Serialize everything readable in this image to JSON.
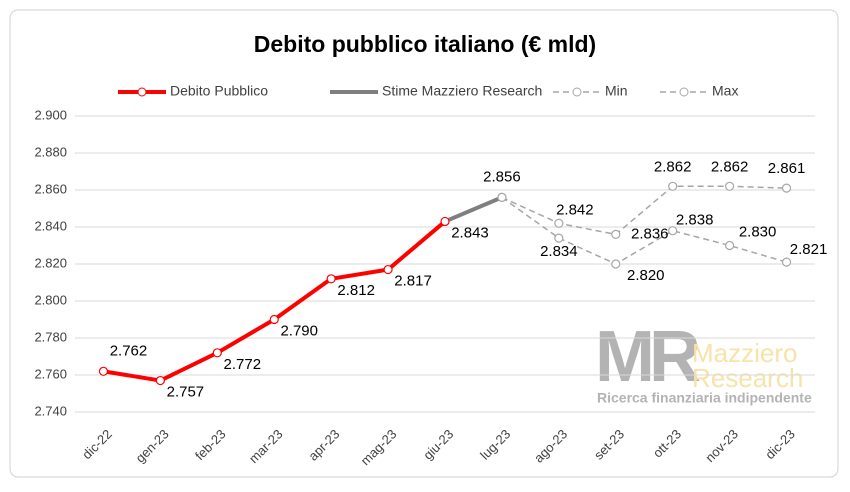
{
  "chart_data": {
    "type": "line",
    "title": "Debito pubblico italiano (€ mld)",
    "categories": [
      "dic-22",
      "gen-23",
      "feb-23",
      "mar-23",
      "apr-23",
      "mag-23",
      "giu-23",
      "lug-23",
      "ago-23",
      "set-23",
      "ott-23",
      "nov-23",
      "dic-23"
    ],
    "series": [
      {
        "name": "Debito Pubblico",
        "color": "#ff0000",
        "dashed": false,
        "marker": true,
        "values": [
          2762,
          2757,
          2772,
          2790,
          2812,
          2817,
          2843,
          null,
          null,
          null,
          null,
          null,
          null
        ],
        "value_labels": [
          "2.762",
          "2.757",
          "2.772",
          "2.790",
          "2.812",
          "2.817",
          "2.843",
          null,
          null,
          null,
          null,
          null,
          null
        ]
      },
      {
        "name": "Stime Mazziero Research",
        "color": "#7f7f7f",
        "dashed": false,
        "marker": false,
        "values": [
          null,
          null,
          null,
          null,
          null,
          null,
          2843,
          2856,
          null,
          null,
          null,
          null,
          null
        ],
        "value_labels": [
          null,
          null,
          null,
          null,
          null,
          null,
          null,
          "2.856",
          null,
          null,
          null,
          null,
          null
        ]
      },
      {
        "name": "Min",
        "color": "#a6a6a6",
        "dashed": true,
        "marker": true,
        "values": [
          null,
          null,
          null,
          null,
          null,
          null,
          null,
          2856,
          2834,
          2820,
          2838,
          2830,
          2821
        ],
        "value_labels": [
          null,
          null,
          null,
          null,
          null,
          null,
          null,
          null,
          "2.834",
          "2.820",
          "2.838",
          "2.830",
          "2.821"
        ]
      },
      {
        "name": "Max",
        "color": "#a6a6a6",
        "dashed": true,
        "marker": true,
        "values": [
          null,
          null,
          null,
          null,
          null,
          null,
          null,
          2856,
          2842,
          2836,
          2862,
          2862,
          2861
        ],
        "value_labels": [
          null,
          null,
          null,
          null,
          null,
          null,
          null,
          null,
          "2.842",
          "2.836",
          "2.862",
          "2.862",
          "2.861"
        ]
      }
    ],
    "ylim": [
      2740,
      2900
    ],
    "yticks": [
      {
        "value": 2740,
        "label": "2.740"
      },
      {
        "value": 2760,
        "label": "2.760"
      },
      {
        "value": 2780,
        "label": "2.780"
      },
      {
        "value": 2800,
        "label": "2.800"
      },
      {
        "value": 2820,
        "label": "2.820"
      },
      {
        "value": 2840,
        "label": "2.840"
      },
      {
        "value": 2860,
        "label": "2.860"
      },
      {
        "value": 2880,
        "label": "2.880"
      },
      {
        "value": 2900,
        "label": "2.900"
      }
    ],
    "grid": true,
    "legend": "top",
    "watermark": {
      "logo": "MR",
      "name1": "Mazziero",
      "name2": "Research",
      "tagline": "Ricerca finanziaria indipendente"
    }
  }
}
